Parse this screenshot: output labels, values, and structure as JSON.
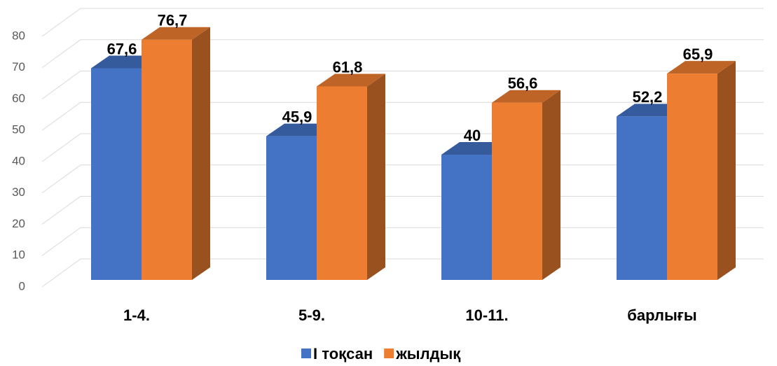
{
  "chart_data": {
    "type": "bar3d",
    "categories": [
      "1-4.",
      "5-9.",
      "10-11.",
      "барлығы"
    ],
    "series": [
      {
        "name": "І тоқсан",
        "color": "#4472c4",
        "values": [
          67.6,
          45.9,
          40,
          52.2
        ],
        "value_labels": [
          "67,6",
          "45,9",
          "40",
          "52,2"
        ]
      },
      {
        "name": "жылдық",
        "color": "#ed7d31",
        "values": [
          76.7,
          61.8,
          56.6,
          65.9
        ],
        "value_labels": [
          "76,7",
          "61,8",
          "56,6",
          "65,9"
        ]
      }
    ],
    "ylim": [
      0,
      80
    ],
    "yticks": [
      0,
      10,
      20,
      30,
      40,
      50,
      60,
      70,
      80
    ],
    "grid": true,
    "legend": "bottom"
  }
}
